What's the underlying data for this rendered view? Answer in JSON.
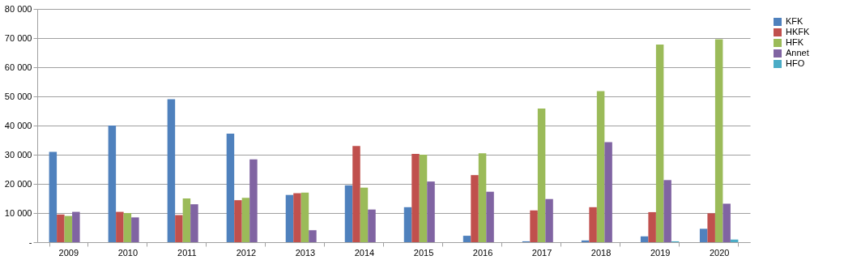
{
  "chart_data": {
    "type": "bar",
    "categories": [
      "2009",
      "2010",
      "2011",
      "2012",
      "2013",
      "2014",
      "2015",
      "2016",
      "2017",
      "2018",
      "2019",
      "2020"
    ],
    "series": [
      {
        "name": "KFK",
        "color": "#4f81bd",
        "values": [
          31000,
          40000,
          49000,
          37200,
          16200,
          19500,
          12000,
          2200,
          300,
          600,
          2000,
          4600
        ]
      },
      {
        "name": "HKFK",
        "color": "#c0504d",
        "values": [
          9500,
          10400,
          9300,
          14400,
          16800,
          33000,
          30300,
          23000,
          10900,
          12000,
          10300,
          9900
        ]
      },
      {
        "name": "HFK",
        "color": "#9bbb59",
        "values": [
          9000,
          10000,
          15000,
          15200,
          17000,
          18700,
          30000,
          30500,
          45800,
          51800,
          67800,
          69600
        ]
      },
      {
        "name": "Annet",
        "color": "#8064a2",
        "values": [
          10400,
          8500,
          13000,
          28400,
          4100,
          11200,
          20800,
          17300,
          14800,
          34300,
          21300,
          13200
        ]
      },
      {
        "name": "HFO",
        "color": "#4bacc6",
        "values": [
          null,
          null,
          null,
          null,
          null,
          null,
          null,
          null,
          null,
          null,
          300,
          900
        ]
      }
    ],
    "ylim": [
      0,
      80000
    ],
    "yticks": [
      {
        "value": 0,
        "label": "-"
      },
      {
        "value": 10000,
        "label": "10 000"
      },
      {
        "value": 20000,
        "label": "20 000"
      },
      {
        "value": 30000,
        "label": "30 000"
      },
      {
        "value": 40000,
        "label": "40 000"
      },
      {
        "value": 50000,
        "label": "50 000"
      },
      {
        "value": 60000,
        "label": "60 000"
      },
      {
        "value": 70000,
        "label": "70 000"
      },
      {
        "value": 80000,
        "label": "80 000"
      }
    ],
    "grid": "y",
    "legend": "right"
  }
}
